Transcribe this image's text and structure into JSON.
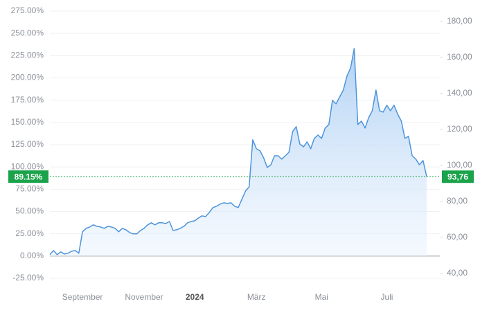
{
  "chart_data": {
    "type": "line",
    "series": [
      {
        "color": "#4d94db",
        "axis": "y",
        "values": [
          1.6,
          6.2,
          1.6,
          4.7,
          2.3,
          3.1,
          5.4,
          6.2,
          3.1,
          27.2,
          31.1,
          32.6,
          35.0,
          33.4,
          32.6,
          31.1,
          33.4,
          32.6,
          31.1,
          27.2,
          31.1,
          29.5,
          26.4,
          24.9,
          24.9,
          28.7,
          31.1,
          35.0,
          37.3,
          35.0,
          37.3,
          37.3,
          36.5,
          38.8,
          28.7,
          29.5,
          31.1,
          33.4,
          37.3,
          38.8,
          39.6,
          42.7,
          45.1,
          44.3,
          48.9,
          54.4,
          55.9,
          58.3,
          59.8,
          59.0,
          59.8,
          55.9,
          54.4,
          63.7,
          73.0,
          77.7,
          130.5,
          120.4,
          118.1,
          110.3,
          99.4,
          102.5,
          112.6,
          112.6,
          108.8,
          112.6,
          116.5,
          139.8,
          145.3,
          125.8,
          122.7,
          128.2,
          120.4,
          132.1,
          135.9,
          132.1,
          143.7,
          147.6,
          174.8,
          170.9,
          178.7,
          186.4,
          202.0,
          211.3,
          233.0,
          147.6,
          151.5,
          143.7,
          155.4,
          163.1,
          186.4,
          163.1,
          161.6,
          169.3,
          163.1,
          169.3,
          159.2,
          151.5,
          132.1,
          134.4,
          112.6,
          108.8,
          102.5,
          107.2,
          89.15
        ]
      }
    ],
    "xlim": [
      0,
      104
    ],
    "xticks": [
      {
        "value": 9,
        "label": "September"
      },
      {
        "value": 26,
        "label": "November"
      },
      {
        "value": 40,
        "label": "2024"
      },
      {
        "value": 57,
        "label": "März"
      },
      {
        "value": 75,
        "label": "Mai"
      },
      {
        "value": 93,
        "label": "Juli"
      }
    ],
    "ylim": [
      -25,
      275
    ],
    "yticks": [
      {
        "value": -25,
        "label": "-25.00%"
      },
      {
        "value": 0,
        "label": "0.00%"
      },
      {
        "value": 25,
        "label": "25.00%"
      },
      {
        "value": 50,
        "label": "50.00%"
      },
      {
        "value": 75,
        "label": "75.00%"
      },
      {
        "value": 100,
        "label": "100.00%"
      },
      {
        "value": 125,
        "label": "125.00%"
      },
      {
        "value": 150,
        "label": "150.00%"
      },
      {
        "value": 175,
        "label": "175.00%"
      },
      {
        "value": 200,
        "label": "200.00%"
      },
      {
        "value": 225,
        "label": "225.00%"
      },
      {
        "value": 250,
        "label": "250.00%"
      },
      {
        "value": 275,
        "label": "275.00%"
      }
    ],
    "y2lim": [
      37.3,
      185.8
    ],
    "y2ticks": [
      {
        "value": 40,
        "label": "40,00"
      },
      {
        "value": 60,
        "label": "60,00"
      },
      {
        "value": 80,
        "label": "80,00"
      },
      {
        "value": 100,
        "label": "100,00"
      },
      {
        "value": 120,
        "label": "120,00"
      },
      {
        "value": 140,
        "label": "140,00"
      },
      {
        "value": 160,
        "label": "160,00"
      },
      {
        "value": 180,
        "label": "180,00"
      }
    ],
    "last_change": {
      "value": 89.15,
      "label": "89.15%"
    },
    "last_price": {
      "value": 93.76,
      "label": "93,76"
    },
    "marker_color": "#1aa34a",
    "grid": true
  }
}
